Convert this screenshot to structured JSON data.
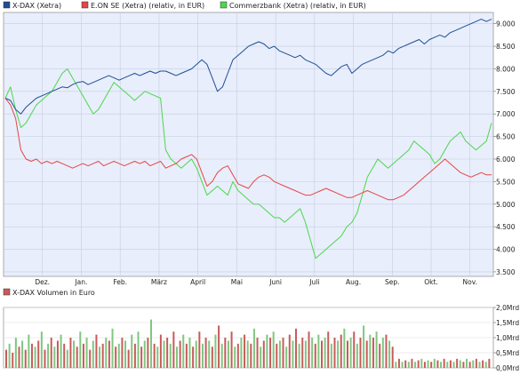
{
  "chart_data": [
    {
      "type": "line",
      "legend_placement": "top",
      "grid": true,
      "series": [
        {
          "name": "X-DAX (Xetra)",
          "color": "#1f4e96",
          "values": [
            7350,
            7300,
            7100,
            7000,
            7150,
            7250,
            7350,
            7400,
            7450,
            7500,
            7550,
            7600,
            7580,
            7650,
            7700,
            7720,
            7650,
            7700,
            7750,
            7800,
            7850,
            7800,
            7750,
            7800,
            7850,
            7900,
            7850,
            7900,
            7950,
            7900,
            7950,
            7950,
            7900,
            7850,
            7900,
            7950,
            8000,
            8100,
            8200,
            8100,
            7800,
            7500,
            7600,
            7900,
            8200,
            8300,
            8400,
            8500,
            8550,
            8600,
            8550,
            8450,
            8500,
            8400,
            8350,
            8300,
            8250,
            8300,
            8200,
            8150,
            8100,
            8000,
            7900,
            7850,
            7950,
            8050,
            8100,
            7900,
            8000,
            8100,
            8150,
            8200,
            8250,
            8300,
            8400,
            8350,
            8450,
            8500,
            8550,
            8600,
            8650,
            8550,
            8650,
            8700,
            8750,
            8700,
            8800,
            8850,
            8900,
            8950,
            9000,
            9050,
            9100,
            9050,
            9100
          ]
        },
        {
          "name": "E.ON SE (Xetra) (relativ, in EUR)",
          "color": "#e64545",
          "values": [
            7350,
            7200,
            6900,
            6200,
            6000,
            5950,
            6000,
            5900,
            5950,
            5900,
            5950,
            5900,
            5850,
            5800,
            5850,
            5900,
            5850,
            5900,
            5950,
            5850,
            5900,
            5950,
            5900,
            5850,
            5900,
            5950,
            5900,
            5950,
            5850,
            5900,
            5950,
            5800,
            5850,
            5900,
            6000,
            6050,
            6100,
            6000,
            5700,
            5400,
            5500,
            5700,
            5800,
            5850,
            5650,
            5450,
            5400,
            5350,
            5500,
            5600,
            5650,
            5600,
            5500,
            5450,
            5400,
            5350,
            5300,
            5250,
            5200,
            5200,
            5250,
            5300,
            5350,
            5300,
            5250,
            5200,
            5150,
            5150,
            5200,
            5250,
            5300,
            5250,
            5200,
            5150,
            5100,
            5100,
            5150,
            5200,
            5300,
            5400,
            5500,
            5600,
            5700,
            5800,
            5900,
            6000,
            5900,
            5800,
            5700,
            5650,
            5600,
            5650,
            5700,
            5650,
            5650
          ]
        },
        {
          "name": "Commerzbank (Xetra) (relativ, in EUR)",
          "color": "#4cd64c",
          "values": [
            7350,
            7600,
            7100,
            6700,
            6800,
            7000,
            7200,
            7300,
            7400,
            7500,
            7700,
            7900,
            8000,
            7800,
            7600,
            7400,
            7200,
            7000,
            7100,
            7300,
            7500,
            7700,
            7600,
            7500,
            7400,
            7300,
            7400,
            7500,
            7450,
            7400,
            7350,
            6200,
            6000,
            5900,
            5800,
            5900,
            6000,
            5800,
            5500,
            5200,
            5300,
            5400,
            5300,
            5200,
            5500,
            5300,
            5200,
            5100,
            5000,
            5000,
            4900,
            4800,
            4700,
            4700,
            4600,
            4700,
            4800,
            4900,
            4600,
            4200,
            3800,
            3900,
            4000,
            4100,
            4200,
            4300,
            4500,
            4600,
            4800,
            5200,
            5600,
            5800,
            6000,
            5900,
            5800,
            5900,
            6000,
            6100,
            6200,
            6400,
            6300,
            6200,
            6100,
            5900,
            6000,
            6200,
            6400,
            6500,
            6600,
            6400,
            6300,
            6200,
            6300,
            6400,
            6800
          ]
        }
      ],
      "x_tick_labels": [
        "Dez.",
        "Jan.",
        "Feb.",
        "März",
        "April",
        "Mai",
        "Juni",
        "Juli",
        "Aug.",
        "Sep.",
        "Okt.",
        "Nov."
      ],
      "y_ticks": [
        3500,
        4000,
        4500,
        5000,
        5500,
        6000,
        6500,
        7000,
        7500,
        8000,
        8500,
        9000
      ],
      "y_tick_labels": [
        "3.500",
        "4.000",
        "4.500",
        "5.000",
        "5.500",
        "6.000",
        "6.500",
        "7.000",
        "7.500",
        "8.000",
        "8.500",
        "9.000"
      ],
      "ylim": [
        3400,
        9250
      ]
    },
    {
      "type": "bar",
      "legend_placement": "top-left",
      "grid": true,
      "series": [
        {
          "name": "X-DAX Volumen in Euro",
          "colors": [
            "#c85a5a",
            "#7fc77f"
          ],
          "values": [
            0.6,
            0.8,
            0.5,
            1.0,
            0.7,
            0.9,
            0.6,
            1.1,
            0.8,
            0.7,
            0.9,
            1.2,
            0.6,
            0.8,
            1.0,
            0.7,
            0.9,
            1.1,
            0.8,
            0.6,
            1.0,
            0.9,
            0.7,
            1.2,
            0.8,
            1.0,
            0.6,
            0.9,
            1.1,
            0.7,
            0.8,
            1.0,
            0.9,
            1.3,
            0.7,
            0.8,
            1.0,
            0.9,
            0.6,
            1.1,
            0.8,
            1.2,
            0.7,
            0.9,
            1.0,
            1.6,
            0.8,
            0.7,
            1.1,
            0.9,
            1.0,
            0.8,
            1.2,
            0.7,
            0.9,
            1.1,
            0.8,
            1.0,
            0.7,
            0.9,
            1.2,
            0.8,
            1.0,
            0.9,
            0.7,
            1.1,
            1.4,
            0.8,
            1.0,
            0.9,
            1.2,
            0.7,
            0.8,
            1.0,
            1.1,
            0.9,
            0.8,
            1.3,
            1.0,
            0.7,
            0.9,
            1.1,
            1.0,
            1.2,
            0.8,
            0.9,
            1.0,
            0.7,
            1.1,
            0.9,
            1.3,
            0.8,
            1.0,
            0.9,
            1.2,
            1.0,
            0.8,
            1.1,
            0.9,
            1.0,
            1.2,
            0.8,
            1.0,
            0.9,
            1.1,
            1.3,
            0.9,
            1.0,
            1.2,
            0.8,
            1.0,
            1.4,
            0.9,
            1.1,
            1.0,
            1.2,
            0.8,
            1.0,
            1.1,
            0.9,
            0.7,
            0.2,
            0.3,
            0.2,
            0.25,
            0.2,
            0.3,
            0.2,
            0.25,
            0.3,
            0.2,
            0.25,
            0.2,
            0.3,
            0.25,
            0.2,
            0.3,
            0.2,
            0.25,
            0.2,
            0.3,
            0.25,
            0.2,
            0.3,
            0.2,
            0.25,
            0.3,
            0.2,
            0.25,
            0.2,
            0.3
          ]
        }
      ],
      "y_ticks": [
        0,
        0.5,
        1.0,
        1.5,
        2.0
      ],
      "y_tick_labels": [
        "0,0Mrd",
        "0,5Mrd",
        "1,0Mrd",
        "1,5Mrd",
        "2,0Mrd"
      ],
      "ylim": [
        0,
        2.0
      ]
    }
  ]
}
